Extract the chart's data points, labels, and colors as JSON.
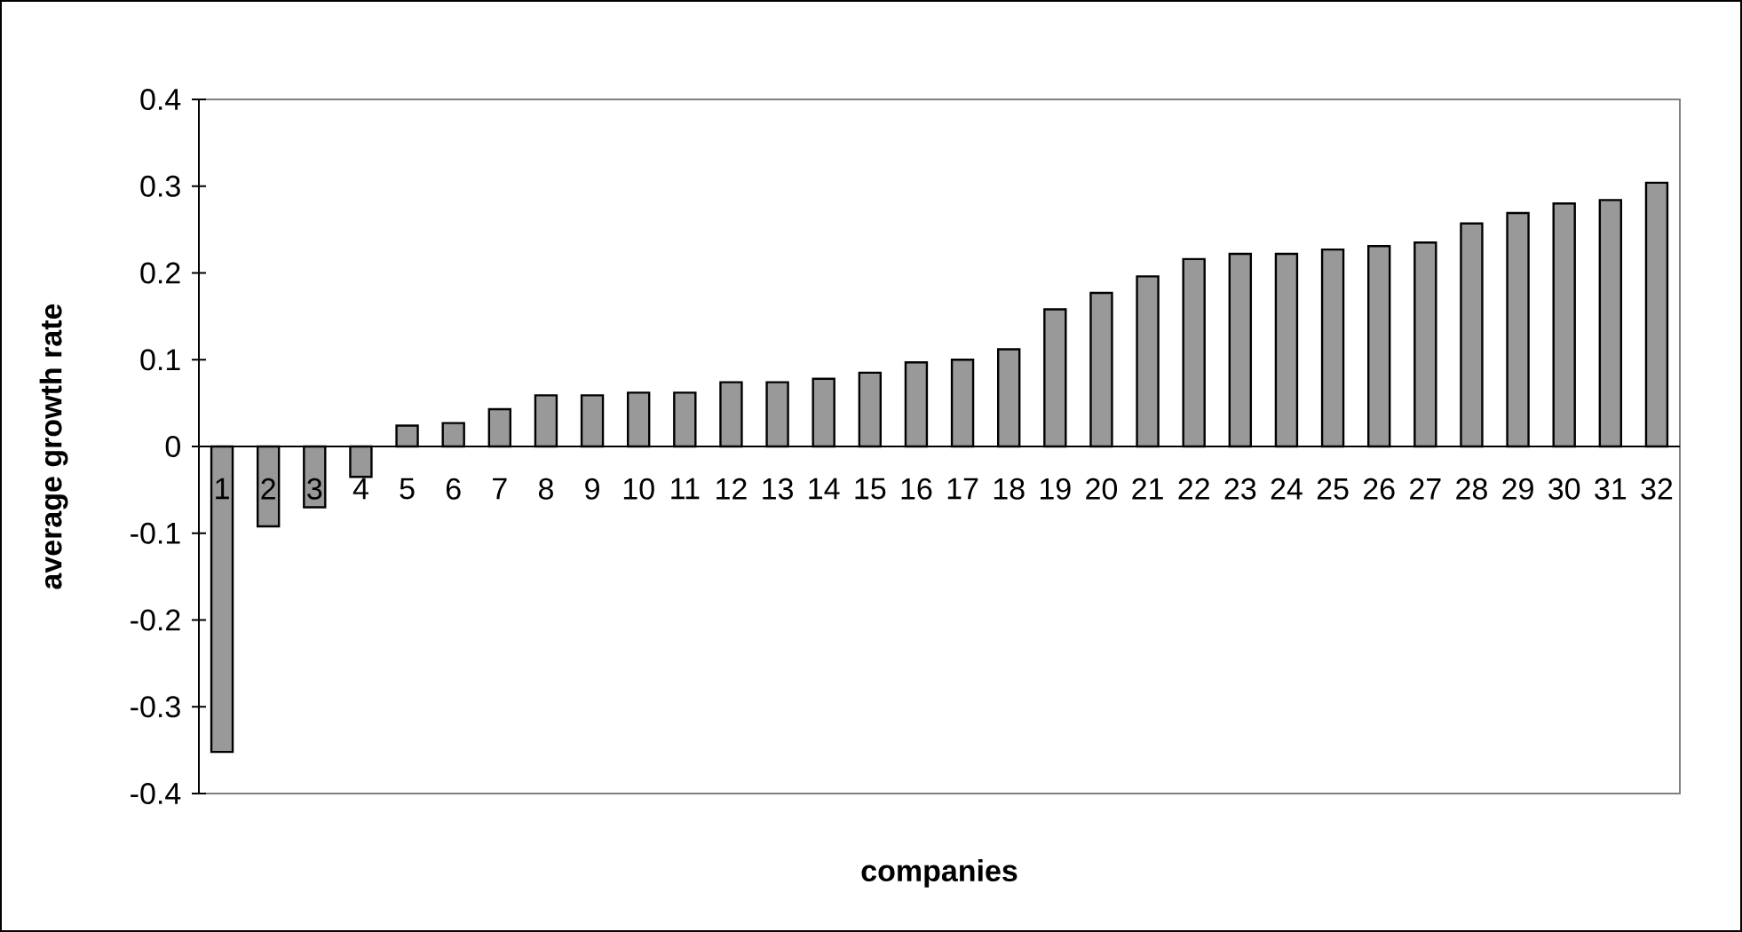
{
  "chart_data": {
    "type": "bar",
    "xlabel": "companies",
    "ylabel": "average growth rate",
    "categories": [
      "1",
      "2",
      "3",
      "4",
      "5",
      "6",
      "7",
      "8",
      "9",
      "10",
      "11",
      "12",
      "13",
      "14",
      "15",
      "16",
      "17",
      "18",
      "19",
      "20",
      "21",
      "22",
      "23",
      "24",
      "25",
      "26",
      "27",
      "28",
      "29",
      "30",
      "31",
      "32"
    ],
    "values": [
      -0.352,
      -0.092,
      -0.07,
      -0.035,
      0.024,
      0.027,
      0.043,
      0.059,
      0.059,
      0.062,
      0.062,
      0.074,
      0.074,
      0.078,
      0.085,
      0.097,
      0.1,
      0.112,
      0.158,
      0.177,
      0.196,
      0.216,
      0.222,
      0.222,
      0.227,
      0.231,
      0.235,
      0.257,
      0.269,
      0.28,
      0.284,
      0.304
    ],
    "color": "#999999",
    "ylim": [
      -0.4,
      0.4
    ],
    "yticks": [
      -0.4,
      -0.3,
      -0.2,
      -0.1,
      0,
      0.1,
      0.2,
      0.3,
      0.4
    ]
  }
}
